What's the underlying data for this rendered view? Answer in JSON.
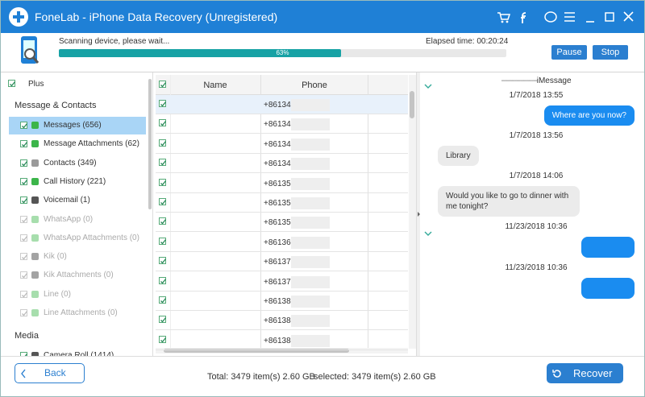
{
  "title_bar": {
    "title": "FoneLab - iPhone Data Recovery (Unregistered)"
  },
  "scan": {
    "status": "Scanning device, please wait...",
    "elapsed": "Elapsed time: 00:20:24",
    "progress": {
      "value": 63,
      "label": "63%"
    },
    "buttons": [
      "Pause",
      "Stop"
    ]
  },
  "sidebar": {
    "device": "Plus",
    "sections": [
      {
        "title": "Message & Contacts",
        "items": [
          {
            "label": "Messages (656)",
            "enabled": true,
            "selected": true,
            "icon_color": "#3cb54a"
          },
          {
            "label": "Message Attachments (62)",
            "enabled": true,
            "icon_color": "#3cb54a"
          },
          {
            "label": "Contacts (349)",
            "enabled": true,
            "icon_color": "#9a9a9a"
          },
          {
            "label": "Call History (221)",
            "enabled": true,
            "icon_color": "#3cb54a"
          },
          {
            "label": "Voicemail (1)",
            "enabled": true,
            "icon_color": "#555555"
          },
          {
            "label": "WhatsApp (0)",
            "enabled": false,
            "icon_color": "#3cb54a"
          },
          {
            "label": "WhatsApp Attachments (0)",
            "enabled": false,
            "icon_color": "#3cb54a"
          },
          {
            "label": "Kik (0)",
            "enabled": false,
            "icon_color": "#333333"
          },
          {
            "label": "Kik Attachments (0)",
            "enabled": false,
            "icon_color": "#333333"
          },
          {
            "label": "Line (0)",
            "enabled": false,
            "icon_color": "#3cb54a"
          },
          {
            "label": "Line Attachments (0)",
            "enabled": false,
            "icon_color": "#3cb54a"
          }
        ]
      },
      {
        "title": "Media",
        "items": [
          {
            "label": "Camera Roll (1414)",
            "enabled": true,
            "icon_color": "#555555"
          }
        ]
      }
    ]
  },
  "table": {
    "columns": [
      "Name",
      "Phone"
    ],
    "phones": [
      "+86134",
      "+86134",
      "+86134",
      "+86134",
      "+86135",
      "+86135",
      "+86135",
      "+86136",
      "+86137",
      "+86137",
      "+86138",
      "+86138",
      "+86138"
    ]
  },
  "messages": {
    "header": "iMessage",
    "entries": [
      {
        "kind": "time",
        "text": "1/7/2018 13:55"
      },
      {
        "kind": "sent",
        "text": "Where are you now?"
      },
      {
        "kind": "time",
        "text": "1/7/2018 13:56"
      },
      {
        "kind": "received",
        "text": "Library"
      },
      {
        "kind": "time",
        "text": "1/7/2018 14:06"
      },
      {
        "kind": "received",
        "text": "Would you like to go to dinner with me tonight?"
      },
      {
        "kind": "time",
        "text": "11/23/2018 10:36"
      },
      {
        "kind": "sent"
      },
      {
        "kind": "time",
        "text": "11/23/2018 10:36"
      },
      {
        "kind": "sent"
      }
    ]
  },
  "footer": {
    "back": "Back",
    "total": "Total: 3479 item(s) 2.60 GB",
    "selected": "selected: 3479 item(s) 2.60 GB",
    "recover": "Recover"
  }
}
